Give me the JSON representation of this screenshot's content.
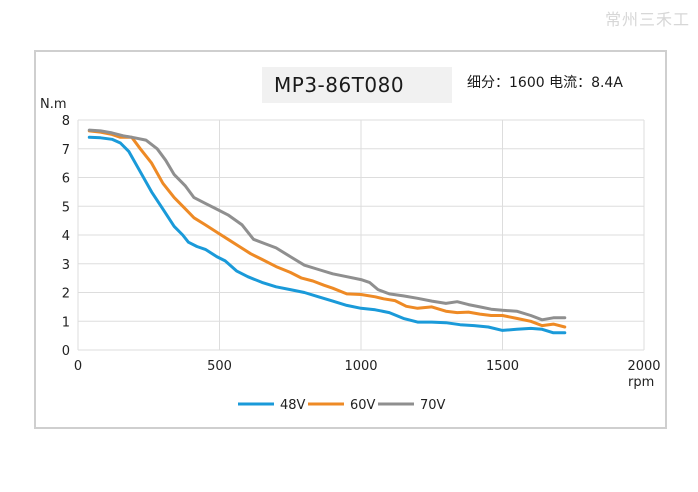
{
  "watermark": "常州三禾工",
  "chart_data": {
    "type": "line",
    "title": "MP3-86T080",
    "subtitle": "细分：1600 电流：8.4A",
    "xlabel": "rpm",
    "ylabel": "N.m",
    "xlim": [
      0,
      2000
    ],
    "ylim": [
      0,
      8
    ],
    "xticks": [
      0,
      500,
      1000,
      1500,
      2000
    ],
    "yticks": [
      0,
      1,
      2,
      3,
      4,
      5,
      6,
      7,
      8
    ],
    "grid": true,
    "legend": "bottom",
    "series": [
      {
        "name": "48V",
        "color": "#1a9ad9",
        "x": [
          40,
          80,
          120,
          150,
          180,
          220,
          260,
          300,
          340,
          370,
          390,
          420,
          450,
          490,
          520,
          560,
          600,
          650,
          700,
          750,
          800,
          850,
          900,
          950,
          1000,
          1050,
          1100,
          1150,
          1200,
          1250,
          1300,
          1350,
          1400,
          1450,
          1500,
          1550,
          1600,
          1640,
          1680,
          1720
        ],
        "values": [
          7.4,
          7.38,
          7.33,
          7.2,
          6.9,
          6.2,
          5.5,
          4.9,
          4.3,
          4.0,
          3.75,
          3.6,
          3.5,
          3.25,
          3.1,
          2.75,
          2.55,
          2.35,
          2.2,
          2.1,
          2.0,
          1.85,
          1.7,
          1.55,
          1.45,
          1.4,
          1.3,
          1.1,
          0.97,
          0.97,
          0.95,
          0.88,
          0.85,
          0.8,
          0.68,
          0.72,
          0.75,
          0.72,
          0.6,
          0.6
        ]
      },
      {
        "name": "60V",
        "color": "#ee8a25",
        "x": [
          40,
          80,
          120,
          150,
          190,
          220,
          260,
          300,
          340,
          380,
          410,
          450,
          490,
          530,
          570,
          610,
          650,
          700,
          750,
          790,
          830,
          870,
          900,
          950,
          1000,
          1050,
          1080,
          1120,
          1160,
          1200,
          1250,
          1300,
          1340,
          1380,
          1420,
          1460,
          1500,
          1550,
          1600,
          1640,
          1680,
          1720
        ],
        "values": [
          7.62,
          7.58,
          7.5,
          7.4,
          7.4,
          7.0,
          6.5,
          5.8,
          5.3,
          4.9,
          4.6,
          4.35,
          4.1,
          3.85,
          3.6,
          3.35,
          3.15,
          2.9,
          2.7,
          2.5,
          2.4,
          2.25,
          2.15,
          1.95,
          1.93,
          1.85,
          1.78,
          1.72,
          1.52,
          1.45,
          1.5,
          1.35,
          1.3,
          1.32,
          1.25,
          1.2,
          1.2,
          1.1,
          1.0,
          0.85,
          0.9,
          0.8
        ]
      },
      {
        "name": "70V",
        "color": "#8f8f8f",
        "x": [
          40,
          80,
          120,
          160,
          200,
          240,
          280,
          310,
          340,
          380,
          410,
          450,
          490,
          530,
          580,
          620,
          660,
          700,
          750,
          800,
          850,
          900,
          950,
          1000,
          1030,
          1060,
          1100,
          1150,
          1200,
          1250,
          1300,
          1340,
          1380,
          1420,
          1460,
          1500,
          1550,
          1600,
          1640,
          1680,
          1720
        ],
        "values": [
          7.65,
          7.62,
          7.55,
          7.45,
          7.38,
          7.3,
          7.0,
          6.6,
          6.1,
          5.7,
          5.3,
          5.1,
          4.9,
          4.7,
          4.35,
          3.85,
          3.7,
          3.55,
          3.25,
          2.95,
          2.8,
          2.65,
          2.55,
          2.45,
          2.35,
          2.1,
          1.95,
          1.88,
          1.8,
          1.7,
          1.62,
          1.68,
          1.58,
          1.5,
          1.42,
          1.38,
          1.35,
          1.2,
          1.05,
          1.12,
          1.12
        ]
      }
    ]
  }
}
